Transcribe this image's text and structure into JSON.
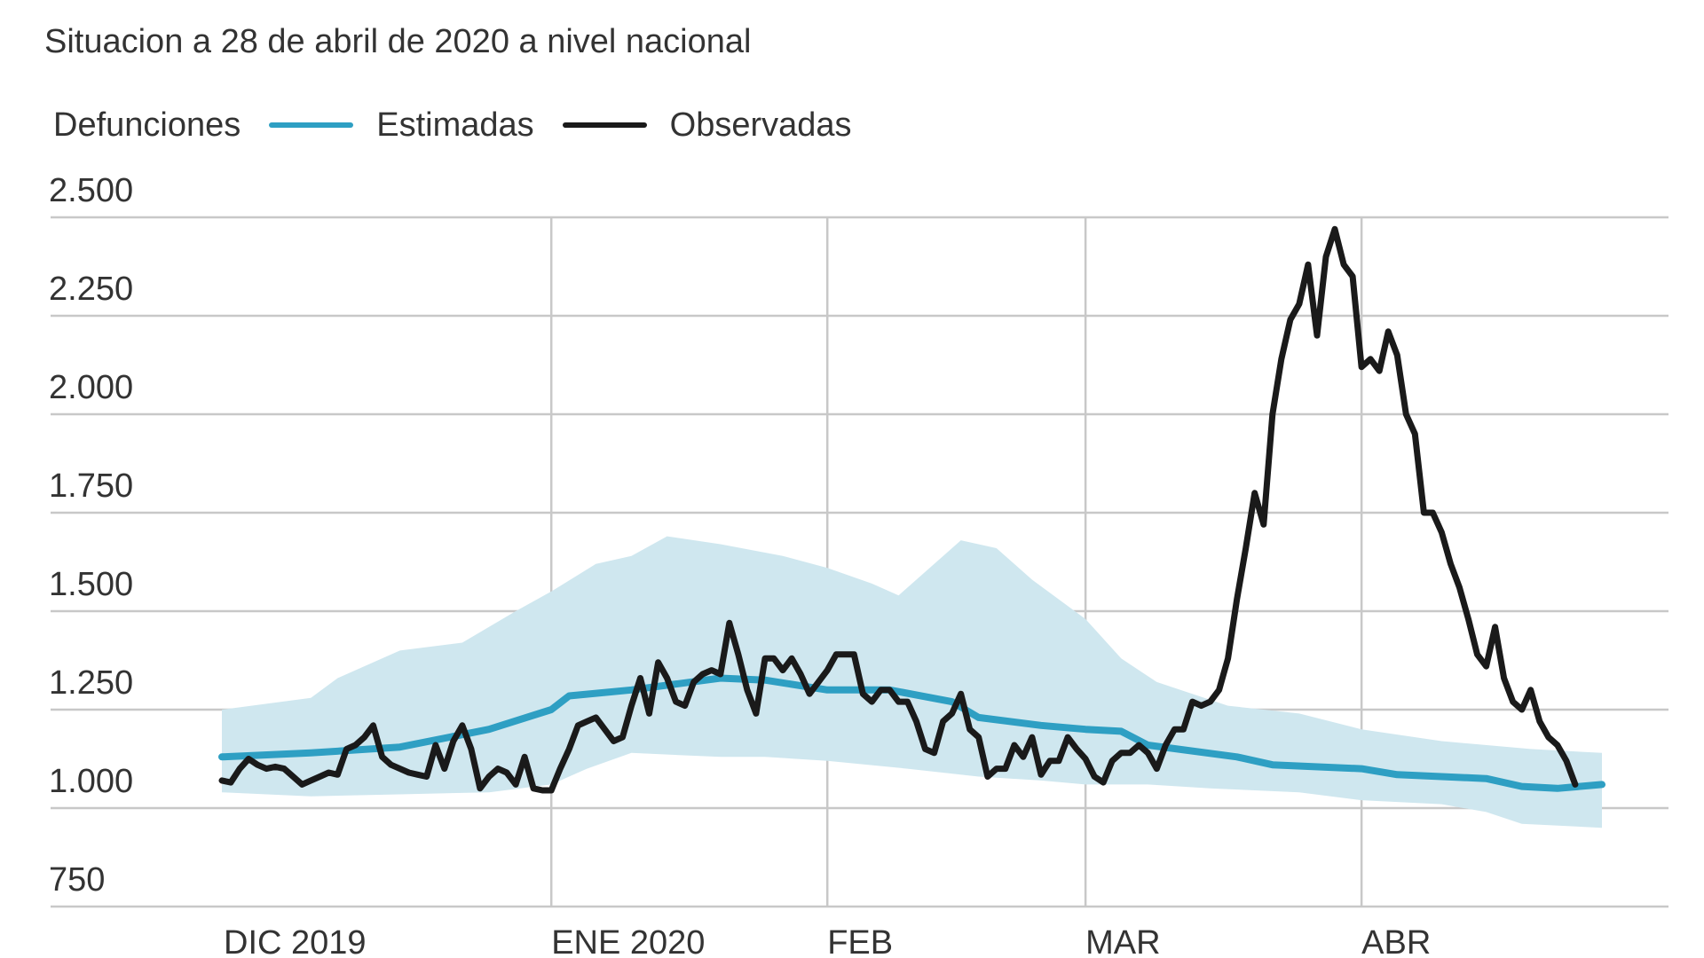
{
  "title": "Situacion a 28 de abril de 2020 a nivel nacional",
  "legend": {
    "label": "Defunciones",
    "estimated": "Estimadas",
    "observed": "Observadas"
  },
  "colors": {
    "estimated": "#2e9fc3",
    "band": "#cfe7ef",
    "observed": "#1a1a1a",
    "grid": "#c8c8c8"
  },
  "chart_data": {
    "type": "line",
    "title": "Situacion a 28 de abril de 2020 a nivel nacional",
    "ylabel": "Defunciones",
    "ylim": [
      750,
      2500
    ],
    "yticks": [
      750,
      1000,
      1250,
      1500,
      1750,
      2000,
      2250,
      2500
    ],
    "ytick_labels": [
      "750",
      "1.000",
      "1.250",
      "1.500",
      "1.750",
      "2.000",
      "2.250",
      "2.500"
    ],
    "x_start": "2019-11-25",
    "x_end": "2020-04-28",
    "month_ticks": [
      {
        "date": "2019-12-01",
        "label": "DIC 2019"
      },
      {
        "date": "2020-01-01",
        "label": "ENE 2020"
      },
      {
        "date": "2020-02-01",
        "label": "FEB"
      },
      {
        "date": "2020-03-01",
        "label": "MAR"
      },
      {
        "date": "2020-04-01",
        "label": "ABR"
      }
    ],
    "legend_position": "top-left",
    "grid": true,
    "series": [
      {
        "name": "Estimadas",
        "points": [
          [
            "2019-11-25",
            1130
          ],
          [
            "2019-12-05",
            1140
          ],
          [
            "2019-12-15",
            1155
          ],
          [
            "2019-12-25",
            1200
          ],
          [
            "2020-01-01",
            1250
          ],
          [
            "2020-01-03",
            1285
          ],
          [
            "2020-01-10",
            1300
          ],
          [
            "2020-01-20",
            1330
          ],
          [
            "2020-01-25",
            1325
          ],
          [
            "2020-02-01",
            1300
          ],
          [
            "2020-02-08",
            1300
          ],
          [
            "2020-02-15",
            1270
          ],
          [
            "2020-02-18",
            1230
          ],
          [
            "2020-02-25",
            1210
          ],
          [
            "2020-03-01",
            1200
          ],
          [
            "2020-03-05",
            1195
          ],
          [
            "2020-03-08",
            1160
          ],
          [
            "2020-03-18",
            1130
          ],
          [
            "2020-03-22",
            1110
          ],
          [
            "2020-04-01",
            1100
          ],
          [
            "2020-04-05",
            1085
          ],
          [
            "2020-04-15",
            1075
          ],
          [
            "2020-04-19",
            1055
          ],
          [
            "2020-04-23",
            1050
          ],
          [
            "2020-04-28",
            1060
          ]
        ]
      },
      {
        "name": "Observadas",
        "points": [
          [
            "2019-11-25",
            1070
          ],
          [
            "2019-11-26",
            1065
          ],
          [
            "2019-11-27",
            1100
          ],
          [
            "2019-11-28",
            1125
          ],
          [
            "2019-11-29",
            1110
          ],
          [
            "2019-11-30",
            1100
          ],
          [
            "2019-12-01",
            1105
          ],
          [
            "2019-12-02",
            1100
          ],
          [
            "2019-12-03",
            1080
          ],
          [
            "2019-12-04",
            1060
          ],
          [
            "2019-12-05",
            1070
          ],
          [
            "2019-12-06",
            1080
          ],
          [
            "2019-12-07",
            1090
          ],
          [
            "2019-12-08",
            1085
          ],
          [
            "2019-12-09",
            1150
          ],
          [
            "2019-12-10",
            1160
          ],
          [
            "2019-12-11",
            1180
          ],
          [
            "2019-12-12",
            1210
          ],
          [
            "2019-12-13",
            1130
          ],
          [
            "2019-12-14",
            1110
          ],
          [
            "2019-12-15",
            1100
          ],
          [
            "2019-12-16",
            1090
          ],
          [
            "2019-12-17",
            1085
          ],
          [
            "2019-12-18",
            1080
          ],
          [
            "2019-12-19",
            1160
          ],
          [
            "2019-12-20",
            1100
          ],
          [
            "2019-12-21",
            1170
          ],
          [
            "2019-12-22",
            1210
          ],
          [
            "2019-12-23",
            1150
          ],
          [
            "2019-12-24",
            1050
          ],
          [
            "2019-12-25",
            1080
          ],
          [
            "2019-12-26",
            1100
          ],
          [
            "2019-12-27",
            1090
          ],
          [
            "2019-12-28",
            1060
          ],
          [
            "2019-12-29",
            1130
          ],
          [
            "2019-12-30",
            1050
          ],
          [
            "2019-12-31",
            1045
          ],
          [
            "2020-01-01",
            1045
          ],
          [
            "2020-01-02",
            1100
          ],
          [
            "2020-01-03",
            1150
          ],
          [
            "2020-01-04",
            1210
          ],
          [
            "2020-01-05",
            1220
          ],
          [
            "2020-01-06",
            1230
          ],
          [
            "2020-01-07",
            1200
          ],
          [
            "2020-01-08",
            1170
          ],
          [
            "2020-01-09",
            1180
          ],
          [
            "2020-01-10",
            1260
          ],
          [
            "2020-01-11",
            1330
          ],
          [
            "2020-01-12",
            1240
          ],
          [
            "2020-01-13",
            1370
          ],
          [
            "2020-01-14",
            1330
          ],
          [
            "2020-01-15",
            1270
          ],
          [
            "2020-01-16",
            1260
          ],
          [
            "2020-01-17",
            1320
          ],
          [
            "2020-01-18",
            1340
          ],
          [
            "2020-01-19",
            1350
          ],
          [
            "2020-01-20",
            1340
          ],
          [
            "2020-01-21",
            1470
          ],
          [
            "2020-01-22",
            1390
          ],
          [
            "2020-01-23",
            1300
          ],
          [
            "2020-01-24",
            1240
          ],
          [
            "2020-01-25",
            1380
          ],
          [
            "2020-01-26",
            1380
          ],
          [
            "2020-01-27",
            1350
          ],
          [
            "2020-01-28",
            1380
          ],
          [
            "2020-01-29",
            1340
          ],
          [
            "2020-01-30",
            1290
          ],
          [
            "2020-01-31",
            1320
          ],
          [
            "2020-02-01",
            1350
          ],
          [
            "2020-02-02",
            1390
          ],
          [
            "2020-02-03",
            1390
          ],
          [
            "2020-02-04",
            1390
          ],
          [
            "2020-02-05",
            1290
          ],
          [
            "2020-02-06",
            1270
          ],
          [
            "2020-02-07",
            1300
          ],
          [
            "2020-02-08",
            1300
          ],
          [
            "2020-02-09",
            1270
          ],
          [
            "2020-02-10",
            1270
          ],
          [
            "2020-02-11",
            1220
          ],
          [
            "2020-02-12",
            1150
          ],
          [
            "2020-02-13",
            1140
          ],
          [
            "2020-02-14",
            1220
          ],
          [
            "2020-02-15",
            1240
          ],
          [
            "2020-02-16",
            1290
          ],
          [
            "2020-02-17",
            1200
          ],
          [
            "2020-02-18",
            1180
          ],
          [
            "2020-02-19",
            1080
          ],
          [
            "2020-02-20",
            1100
          ],
          [
            "2020-02-21",
            1100
          ],
          [
            "2020-02-22",
            1160
          ],
          [
            "2020-02-23",
            1130
          ],
          [
            "2020-02-24",
            1180
          ],
          [
            "2020-02-25",
            1085
          ],
          [
            "2020-02-26",
            1120
          ],
          [
            "2020-02-27",
            1120
          ],
          [
            "2020-02-28",
            1180
          ],
          [
            "2020-02-29",
            1150
          ],
          [
            "2020-03-01",
            1125
          ],
          [
            "2020-03-02",
            1080
          ],
          [
            "2020-03-03",
            1065
          ],
          [
            "2020-03-04",
            1120
          ],
          [
            "2020-03-05",
            1140
          ],
          [
            "2020-03-06",
            1140
          ],
          [
            "2020-03-07",
            1160
          ],
          [
            "2020-03-08",
            1140
          ],
          [
            "2020-03-09",
            1100
          ],
          [
            "2020-03-10",
            1160
          ],
          [
            "2020-03-11",
            1200
          ],
          [
            "2020-03-12",
            1200
          ],
          [
            "2020-03-13",
            1270
          ],
          [
            "2020-03-14",
            1260
          ],
          [
            "2020-03-15",
            1270
          ],
          [
            "2020-03-16",
            1300
          ],
          [
            "2020-03-17",
            1380
          ],
          [
            "2020-03-18",
            1530
          ],
          [
            "2020-03-19",
            1660
          ],
          [
            "2020-03-20",
            1800
          ],
          [
            "2020-03-21",
            1720
          ],
          [
            "2020-03-22",
            2000
          ],
          [
            "2020-03-23",
            2140
          ],
          [
            "2020-03-24",
            2240
          ],
          [
            "2020-03-25",
            2280
          ],
          [
            "2020-03-26",
            2380
          ],
          [
            "2020-03-27",
            2200
          ],
          [
            "2020-03-28",
            2400
          ],
          [
            "2020-03-29",
            2470
          ],
          [
            "2020-03-30",
            2380
          ],
          [
            "2020-03-31",
            2350
          ],
          [
            "2020-04-01",
            2120
          ],
          [
            "2020-04-02",
            2140
          ],
          [
            "2020-04-03",
            2110
          ],
          [
            "2020-04-04",
            2210
          ],
          [
            "2020-04-05",
            2150
          ],
          [
            "2020-04-06",
            2000
          ],
          [
            "2020-04-07",
            1950
          ],
          [
            "2020-04-08",
            1750
          ],
          [
            "2020-04-09",
            1750
          ],
          [
            "2020-04-10",
            1700
          ],
          [
            "2020-04-11",
            1620
          ],
          [
            "2020-04-12",
            1560
          ],
          [
            "2020-04-13",
            1480
          ],
          [
            "2020-04-14",
            1390
          ],
          [
            "2020-04-15",
            1360
          ],
          [
            "2020-04-16",
            1460
          ],
          [
            "2020-04-17",
            1330
          ],
          [
            "2020-04-18",
            1270
          ],
          [
            "2020-04-19",
            1250
          ],
          [
            "2020-04-20",
            1300
          ],
          [
            "2020-04-21",
            1220
          ],
          [
            "2020-04-22",
            1180
          ],
          [
            "2020-04-23",
            1160
          ],
          [
            "2020-04-24",
            1120
          ],
          [
            "2020-04-25",
            1060
          ]
        ]
      }
    ],
    "band": {
      "upper": [
        [
          "2019-11-25",
          1250
        ],
        [
          "2019-12-05",
          1280
        ],
        [
          "2019-12-08",
          1330
        ],
        [
          "2019-12-15",
          1400
        ],
        [
          "2019-12-22",
          1420
        ],
        [
          "2019-12-28",
          1500
        ],
        [
          "2020-01-01",
          1550
        ],
        [
          "2020-01-06",
          1620
        ],
        [
          "2020-01-10",
          1640
        ],
        [
          "2020-01-14",
          1690
        ],
        [
          "2020-01-20",
          1670
        ],
        [
          "2020-01-27",
          1640
        ],
        [
          "2020-02-01",
          1610
        ],
        [
          "2020-02-06",
          1570
        ],
        [
          "2020-02-09",
          1540
        ],
        [
          "2020-02-13",
          1620
        ],
        [
          "2020-02-16",
          1680
        ],
        [
          "2020-02-20",
          1660
        ],
        [
          "2020-02-24",
          1580
        ],
        [
          "2020-03-01",
          1480
        ],
        [
          "2020-03-05",
          1380
        ],
        [
          "2020-03-09",
          1320
        ],
        [
          "2020-03-13",
          1290
        ],
        [
          "2020-03-17",
          1260
        ],
        [
          "2020-03-25",
          1240
        ],
        [
          "2020-04-01",
          1200
        ],
        [
          "2020-04-10",
          1170
        ],
        [
          "2020-04-20",
          1150
        ],
        [
          "2020-04-28",
          1140
        ]
      ],
      "lower": [
        [
          "2019-11-25",
          1040
        ],
        [
          "2019-12-05",
          1030
        ],
        [
          "2019-12-15",
          1035
        ],
        [
          "2019-12-25",
          1040
        ],
        [
          "2020-01-01",
          1060
        ],
        [
          "2020-01-05",
          1100
        ],
        [
          "2020-01-10",
          1140
        ],
        [
          "2020-01-20",
          1130
        ],
        [
          "2020-01-25",
          1130
        ],
        [
          "2020-02-01",
          1120
        ],
        [
          "2020-02-10",
          1100
        ],
        [
          "2020-02-18",
          1080
        ],
        [
          "2020-02-25",
          1070
        ],
        [
          "2020-03-01",
          1060
        ],
        [
          "2020-03-08",
          1060
        ],
        [
          "2020-03-15",
          1050
        ],
        [
          "2020-03-25",
          1040
        ],
        [
          "2020-04-01",
          1020
        ],
        [
          "2020-04-10",
          1010
        ],
        [
          "2020-04-15",
          990
        ],
        [
          "2020-04-19",
          960
        ],
        [
          "2020-04-28",
          950
        ]
      ]
    }
  }
}
